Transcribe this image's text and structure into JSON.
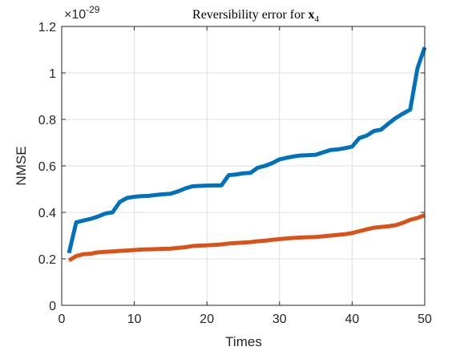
{
  "chart_data": {
    "type": "line",
    "title": {
      "prefix": "Reversibility error for ",
      "symbol": "x",
      "subscript": "4"
    },
    "xlabel": "Times",
    "ylabel": "NMSE",
    "y_exponent": {
      "base": "×10",
      "power": "-29"
    },
    "xlim": [
      0,
      50
    ],
    "ylim": [
      0,
      1.2
    ],
    "x_ticks": [
      0,
      10,
      20,
      30,
      40,
      50
    ],
    "y_ticks": [
      0,
      0.2,
      0.4,
      0.6,
      0.8,
      1,
      1.2
    ],
    "y_tick_labels": [
      "0",
      "0.2",
      "0.4",
      "0.6",
      "0.8",
      "1",
      "1.2"
    ],
    "grid": true,
    "x": [
      1,
      2,
      3,
      4,
      5,
      6,
      7,
      8,
      9,
      10,
      11,
      12,
      13,
      14,
      15,
      16,
      17,
      18,
      19,
      20,
      21,
      22,
      23,
      24,
      25,
      26,
      27,
      28,
      29,
      30,
      31,
      32,
      33,
      34,
      35,
      36,
      37,
      38,
      39,
      40,
      41,
      42,
      43,
      44,
      45,
      46,
      47,
      48,
      49,
      50
    ],
    "series": [
      {
        "color": "#0072BD",
        "values": [
          0.225,
          0.357,
          0.365,
          0.372,
          0.382,
          0.395,
          0.4,
          0.445,
          0.462,
          0.467,
          0.47,
          0.471,
          0.475,
          0.478,
          0.48,
          0.49,
          0.503,
          0.512,
          0.514,
          0.515,
          0.516,
          0.516,
          0.56,
          0.563,
          0.568,
          0.57,
          0.592,
          0.6,
          0.612,
          0.628,
          0.635,
          0.641,
          0.645,
          0.646,
          0.648,
          0.658,
          0.668,
          0.671,
          0.676,
          0.683,
          0.72,
          0.73,
          0.75,
          0.756,
          0.782,
          0.806,
          0.825,
          0.842,
          1.02,
          1.11
        ]
      },
      {
        "color": "#D95319",
        "values": [
          0.193,
          0.212,
          0.22,
          0.222,
          0.228,
          0.23,
          0.232,
          0.234,
          0.236,
          0.238,
          0.24,
          0.241,
          0.242,
          0.243,
          0.244,
          0.247,
          0.25,
          0.255,
          0.257,
          0.258,
          0.26,
          0.262,
          0.266,
          0.268,
          0.27,
          0.272,
          0.276,
          0.278,
          0.282,
          0.285,
          0.288,
          0.29,
          0.292,
          0.293,
          0.294,
          0.297,
          0.3,
          0.303,
          0.306,
          0.311,
          0.319,
          0.327,
          0.334,
          0.337,
          0.34,
          0.345,
          0.355,
          0.368,
          0.376,
          0.388
        ]
      }
    ]
  }
}
